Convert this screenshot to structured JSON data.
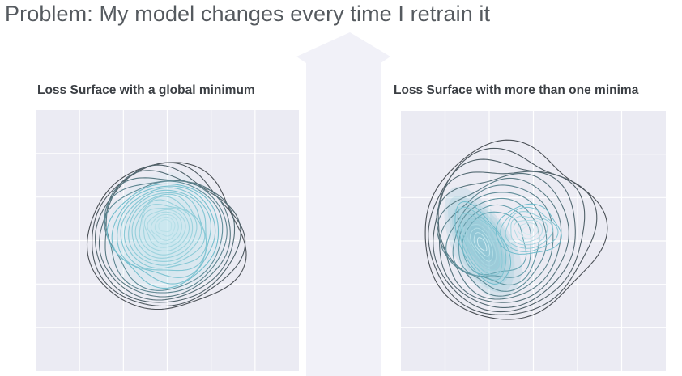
{
  "slide": {
    "title": "Problem: My model changes every time I retrain it"
  },
  "panels": [
    {
      "title": "Loss Surface with a global minimum",
      "kind": "contour-single-minimum"
    },
    {
      "title": "Loss Surface with more than one minima",
      "kind": "contour-multiple-minima"
    }
  ],
  "colors": {
    "plot_bg": "#ebebf3",
    "grid": "#ffffff",
    "outer_contour": "#4a4f55",
    "inner_contour": "#6fbccc",
    "arrow_fill": "#f1f1f8",
    "title_text": "#555a5f"
  }
}
